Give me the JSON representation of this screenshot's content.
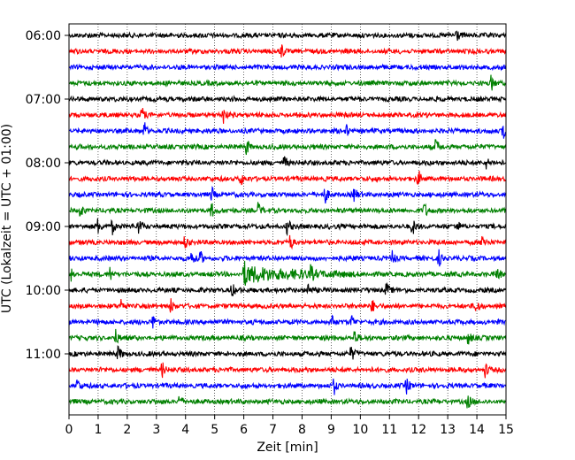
{
  "chart_data": {
    "type": "line",
    "title": "",
    "xlabel": "Zeit  [min]",
    "ylabel": "UTC (Lokalzeit = UTC + 01:00)",
    "xlim": [
      0,
      15
    ],
    "x_ticks": [
      "0",
      "1",
      "2",
      "3",
      "4",
      "5",
      "6",
      "7",
      "8",
      "9",
      "10",
      "11",
      "12",
      "13",
      "14",
      "15"
    ],
    "y_ticks": [
      "06:00",
      "07:00",
      "08:00",
      "09:00",
      "10:00",
      "11:00"
    ],
    "row_start_time": "06:00",
    "row_interval_min": 15,
    "rows_count": 24,
    "trace_colors": [
      "#000000",
      "#ff0000",
      "#0000ff",
      "#008000"
    ],
    "vertical_grid": "dotted",
    "events": [
      {
        "row": "06:00",
        "minutes": [
          13.3
        ]
      },
      {
        "row": "06:15",
        "minutes": [
          7.3
        ]
      },
      {
        "row": "06:45",
        "minutes": [
          14.5
        ]
      },
      {
        "row": "07:15",
        "minutes": [
          2.5,
          5.3
        ]
      },
      {
        "row": "07:30",
        "minutes": [
          2.6,
          9.5,
          14.9
        ]
      },
      {
        "row": "07:45",
        "minutes": [
          6.1,
          12.6
        ]
      },
      {
        "row": "08:00",
        "minutes": [
          7.4,
          14.3
        ]
      },
      {
        "row": "08:15",
        "minutes": [
          5.9,
          12.0
        ]
      },
      {
        "row": "08:30",
        "minutes": [
          4.9,
          8.8,
          9.8
        ]
      },
      {
        "row": "08:45",
        "minutes": [
          0.4,
          4.9,
          6.5,
          12.2
        ]
      },
      {
        "row": "09:00",
        "minutes": [
          1.0,
          1.5,
          2.4,
          7.5,
          11.8,
          13.3
        ]
      },
      {
        "row": "09:15",
        "minutes": [
          4.0,
          7.6,
          14.2
        ]
      },
      {
        "row": "09:30",
        "minutes": [
          4.2,
          4.5,
          11.1,
          12.7
        ]
      },
      {
        "row": "09:45",
        "minutes": [
          0.1,
          1.4,
          6.0,
          8.3,
          14.7
        ]
      },
      {
        "row": "10:00",
        "minutes": [
          5.6,
          8.2,
          10.9
        ]
      },
      {
        "row": "10:15",
        "minutes": [
          1.8,
          3.5,
          10.4,
          14.0
        ]
      },
      {
        "row": "10:30",
        "minutes": [
          2.9,
          9.0,
          9.7
        ]
      },
      {
        "row": "10:45",
        "minutes": [
          1.6,
          9.8,
          13.7
        ]
      },
      {
        "row": "11:00",
        "minutes": [
          1.7,
          9.7
        ]
      },
      {
        "row": "11:15",
        "minutes": [
          3.2,
          14.3
        ]
      },
      {
        "row": "11:30",
        "minutes": [
          0.3,
          9.1,
          11.6
        ]
      },
      {
        "row": "11:45",
        "minutes": [
          3.8,
          13.7
        ]
      }
    ],
    "large_event": {
      "row": "09:45",
      "start_minute": 6.0,
      "end_minute": 10.0
    }
  }
}
